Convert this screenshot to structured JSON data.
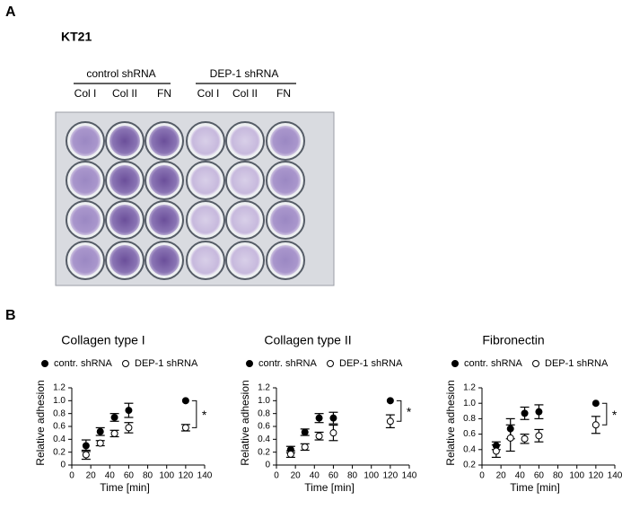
{
  "panel_a": {
    "label": "A",
    "title": "KT21",
    "groups": [
      {
        "name": "control shRNA",
        "columns": [
          "Col I",
          "Col II",
          "FN"
        ]
      },
      {
        "name": "DEP-1 shRNA",
        "columns": [
          "Col I",
          "Col II",
          "FN"
        ]
      }
    ]
  },
  "panel_b": {
    "label": "B"
  },
  "chart_data": [
    {
      "type": "scatter",
      "title": "Collagen type I",
      "xlabel": "Time [min]",
      "ylabel": "Relative adhesion",
      "x": [
        15,
        30,
        45,
        60,
        120
      ],
      "series": [
        {
          "name": "contr. shRNA",
          "color": "#000000",
          "values": [
            0.3,
            0.52,
            0.74,
            0.85,
            1.0
          ],
          "errors": [
            0.09,
            0.06,
            0.06,
            0.11,
            null
          ]
        },
        {
          "name": "DEP-1 shRNA",
          "color": "#ffffff",
          "values": [
            0.16,
            0.34,
            0.49,
            0.58,
            0.58
          ],
          "errors": [
            0.07,
            0.04,
            0.05,
            0.08,
            0.05
          ]
        }
      ],
      "xlim": [
        0,
        140
      ],
      "xticks": [
        0,
        20,
        40,
        60,
        80,
        100,
        120,
        140
      ],
      "ylim": [
        0,
        1.2
      ],
      "yticks": [
        0,
        0.2,
        0.4,
        0.6,
        0.8,
        {
          "value": 1,
          "label": "1.0"
        },
        1.2
      ],
      "annotation": "*"
    },
    {
      "type": "scatter",
      "title": "Collagen type II",
      "xlabel": "Time [min]",
      "ylabel": "Relative adhesion",
      "x": [
        15,
        30,
        45,
        60,
        120
      ],
      "series": [
        {
          "name": "contr. shRNA",
          "color": "#000000",
          "values": [
            0.24,
            0.51,
            0.73,
            0.73,
            1.0
          ],
          "errors": [
            0.05,
            0.05,
            0.07,
            0.09,
            null
          ]
        },
        {
          "name": "DEP-1 shRNA",
          "color": "#ffffff",
          "values": [
            0.17,
            0.28,
            0.45,
            0.5,
            0.68
          ],
          "errors": [
            0.05,
            0.05,
            0.06,
            0.12,
            0.1
          ]
        }
      ],
      "xlim": [
        0,
        140
      ],
      "xticks": [
        0,
        20,
        40,
        60,
        80,
        100,
        120,
        140
      ],
      "ylim": [
        0,
        1.2
      ],
      "yticks": [
        0,
        0.2,
        0.4,
        0.6,
        0.8,
        {
          "value": 1,
          "label": "1.0"
        },
        1.2
      ],
      "annotation": "*"
    },
    {
      "type": "scatter",
      "title": "Fibronectin",
      "xlabel": "Time [min]",
      "ylabel": "Relative adhesion",
      "x": [
        15,
        30,
        45,
        60,
        120
      ],
      "series": [
        {
          "name": "contr. shRNA",
          "color": "#000000",
          "values": [
            0.45,
            0.67,
            0.87,
            0.89,
            1.0
          ],
          "errors": [
            0.05,
            0.13,
            0.08,
            0.09,
            null
          ]
        },
        {
          "name": "DEP-1 shRNA",
          "color": "#ffffff",
          "values": [
            0.38,
            0.55,
            0.54,
            0.58,
            0.72
          ],
          "errors": [
            0.08,
            0.17,
            0.06,
            0.08,
            0.11
          ]
        }
      ],
      "xlim": [
        0,
        140
      ],
      "xticks": [
        0,
        20,
        40,
        60,
        80,
        100,
        120,
        140
      ],
      "ylim": [
        0.2,
        1.2
      ],
      "yticks": [
        0.2,
        0.4,
        0.6,
        0.8,
        {
          "value": 1,
          "label": "1.0"
        },
        1.2
      ],
      "annotation": "*"
    }
  ]
}
